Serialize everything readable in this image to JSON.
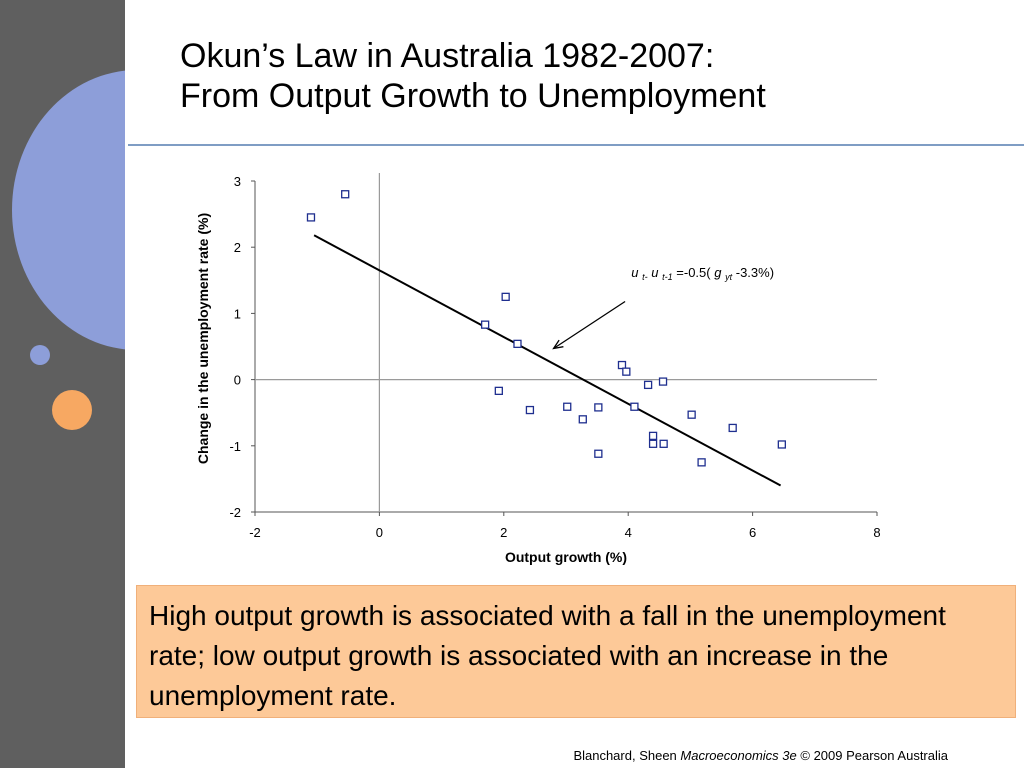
{
  "slide": {
    "title_line1": "Okun’s Law in Australia 1982-2007:",
    "title_line2": "From Output Growth to Unemployment",
    "callout_text": "High output growth is associated with a fall in the unemployment rate; low output growth is associated with an increase in the unemployment rate.",
    "footer_authors": "Blanchard, Sheen",
    "footer_book": "Macroeconomics 3e",
    "footer_rest": "© 2009 Pearson Australia"
  },
  "colors": {
    "sidebar": "#5f5f5f",
    "accent_circle": "#8d9ed9",
    "accent_dot": "#f7a862",
    "callout_bg": "#fdc998",
    "title_rule": "#7f9dc4",
    "marker": "#1f2f8f"
  },
  "chart_data": {
    "type": "scatter",
    "title": "",
    "xlabel": "Output growth (%)",
    "ylabel": "Change in the unemployment rate (%)",
    "xlim": [
      -2,
      8
    ],
    "ylim": [
      -2,
      3
    ],
    "xticks": [
      -2,
      0,
      2,
      4,
      6,
      8
    ],
    "yticks": [
      -2,
      -1,
      0,
      1,
      2,
      3
    ],
    "grid": false,
    "points": [
      {
        "x": -1.1,
        "y": 2.45
      },
      {
        "x": -0.55,
        "y": 2.8
      },
      {
        "x": 1.7,
        "y": 0.83
      },
      {
        "x": 2.03,
        "y": 1.25
      },
      {
        "x": 2.22,
        "y": 0.54
      },
      {
        "x": 1.92,
        "y": -0.17
      },
      {
        "x": 2.42,
        "y": -0.46
      },
      {
        "x": 3.02,
        "y": -0.41
      },
      {
        "x": 3.27,
        "y": -0.6
      },
      {
        "x": 3.52,
        "y": -0.42
      },
      {
        "x": 3.52,
        "y": -1.12
      },
      {
        "x": 3.9,
        "y": 0.22
      },
      {
        "x": 3.97,
        "y": 0.12
      },
      {
        "x": 4.1,
        "y": -0.41
      },
      {
        "x": 4.32,
        "y": -0.08
      },
      {
        "x": 4.4,
        "y": -0.85
      },
      {
        "x": 4.4,
        "y": -0.97
      },
      {
        "x": 4.56,
        "y": -0.03
      },
      {
        "x": 4.57,
        "y": -0.97
      },
      {
        "x": 5.02,
        "y": -0.53
      },
      {
        "x": 5.18,
        "y": -1.25
      },
      {
        "x": 5.68,
        "y": -0.73
      },
      {
        "x": 6.47,
        "y": -0.98
      }
    ],
    "fit_line": {
      "x": [
        -1.05,
        6.45
      ],
      "y": [
        2.18,
        -1.6
      ]
    },
    "annotation": {
      "u1": "u",
      "s1": "t-",
      "u2": "u",
      "s2": "t-1",
      "eq": "=-0.5(",
      "g": "g",
      "sg": "yt",
      "end": " -3.3%)",
      "arrow_from": {
        "x": 3.95,
        "y": 1.18
      },
      "arrow_to": {
        "x": 2.8,
        "y": 0.47
      }
    }
  }
}
